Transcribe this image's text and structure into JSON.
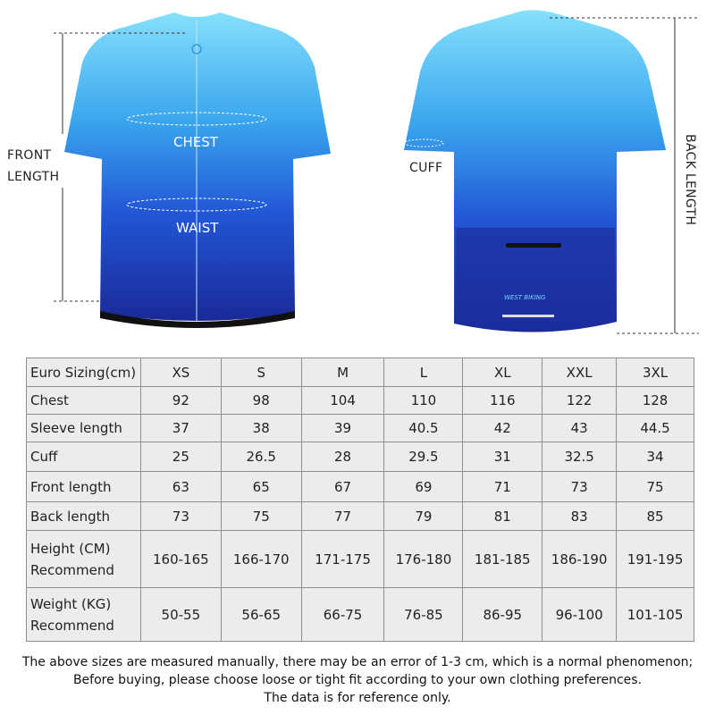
{
  "diagram": {
    "front_length": "FRONT\nLENGTH",
    "front_length_lines": [
      "FRONT",
      "LENGTH"
    ],
    "chest": "CHEST",
    "waist": "WAIST",
    "cuff": "CUFF",
    "back_length": "BACK LENGTH",
    "brand_logo": "WEST BIKING",
    "colors": {
      "jersey_top": "#7fdcfb",
      "jersey_bottom": "#1a2fa0"
    }
  },
  "table": {
    "headers": [
      "Euro Sizing(cm)",
      "XS",
      "S",
      "M",
      "L",
      "XL",
      "XXL",
      "3XL"
    ],
    "rows": [
      {
        "label": "Chest",
        "values": [
          "92",
          "98",
          "104",
          "110",
          "116",
          "122",
          "128"
        ]
      },
      {
        "label": "Sleeve length",
        "values": [
          "37",
          "38",
          "39",
          "40.5",
          "42",
          "43",
          "44.5"
        ]
      },
      {
        "label": "Cuff",
        "values": [
          "25",
          "26.5",
          "28",
          "29.5",
          "31",
          "32.5",
          "34"
        ]
      },
      {
        "label": "Front length",
        "values": [
          "63",
          "65",
          "67",
          "69",
          "71",
          "73",
          "75"
        ]
      },
      {
        "label": "Back length",
        "values": [
          "73",
          "75",
          "77",
          "79",
          "81",
          "83",
          "85"
        ]
      },
      {
        "label": [
          "Height (CM)",
          "Recommend"
        ],
        "values": [
          "160-165",
          "166-170",
          "171-175",
          "176-180",
          "181-185",
          "186-190",
          "191-195"
        ]
      },
      {
        "label": [
          "Weight (KG)",
          "Recommend"
        ],
        "values": [
          "50-55",
          "56-65",
          "66-75",
          "76-85",
          "86-95",
          "96-100",
          "101-105"
        ]
      }
    ]
  },
  "notes": [
    "The above sizes are measured manually, there may be an error of 1-3 cm, which is a normal phenomenon;",
    "Before buying, please choose loose or tight fit according to your own clothing preferences.",
    "The data is for reference only."
  ]
}
